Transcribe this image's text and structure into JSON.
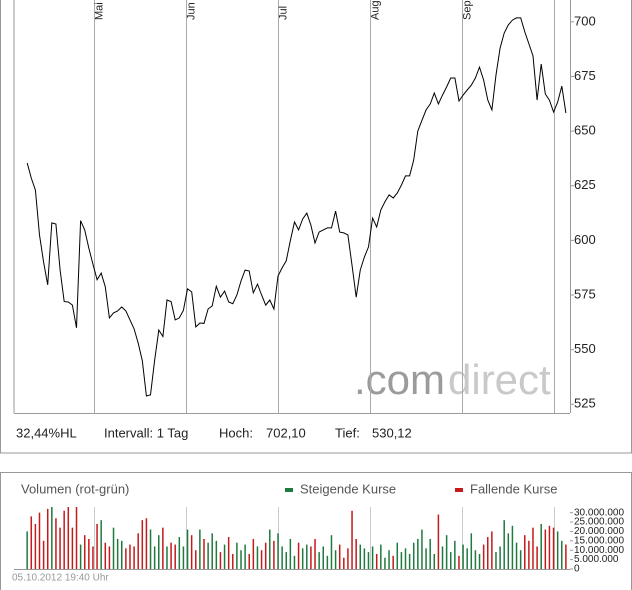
{
  "chart_data": [
    {
      "type": "line",
      "color": "#000000",
      "values": [
        635.4,
        628.5,
        623,
        602.5,
        590,
        579.6,
        608,
        607.5,
        586.4,
        572,
        571.8,
        570.4,
        560,
        609,
        604.8,
        596.5,
        589,
        582,
        585,
        578.7,
        564.5,
        566.8,
        567.7,
        569.5,
        567.7,
        563.6,
        559.5,
        553,
        545,
        528.8,
        529.3,
        545,
        559,
        556,
        572.7,
        572,
        563.6,
        564.5,
        568,
        577.8,
        576.4,
        560.4,
        562.2,
        562,
        568.6,
        570,
        579,
        574,
        576.8,
        571.8,
        571,
        575,
        581.4,
        586.4,
        586,
        576,
        580,
        575,
        570.4,
        572.7,
        568.6,
        583.7,
        587.4,
        590.6,
        600,
        608.4,
        604.8,
        609.8,
        612.5,
        607,
        598.8,
        603.8,
        604.8,
        605.7,
        605.7,
        613.4,
        603.8,
        603.4,
        602.5,
        588.7,
        574,
        586.5,
        592.4,
        597,
        610.2,
        606.1,
        613.9,
        617.6,
        620.8,
        619.4,
        621.7,
        625.3,
        629.5,
        629.5,
        636.8,
        650,
        655,
        659.7,
        662.4,
        667.4,
        662.4,
        666.5,
        670.2,
        674.3,
        674.3,
        663.8,
        666.5,
        668.8,
        671,
        674.3,
        679.3,
        673.4,
        664.2,
        659.7,
        675.7,
        688,
        694.9,
        698.6,
        700.8,
        701.8,
        701.8,
        695.4,
        689.9,
        684.4,
        664.2,
        680.7,
        667,
        664.2,
        658.7,
        663.3,
        670.6,
        658.3
      ],
      "xlim": [
        -3.2,
        132
      ],
      "xticks": [
        {
          "value": 16.3,
          "label": "Mai"
        },
        {
          "value": 38.6,
          "label": "Jun"
        },
        {
          "value": 61,
          "label": "Jul"
        },
        {
          "value": 83.4,
          "label": "Aug"
        },
        {
          "value": 105.7,
          "label": "Sep"
        },
        {
          "value": 128.1,
          "label": null
        }
      ],
      "ylim": [
        521,
        710
      ],
      "yticks": [
        525,
        550,
        575,
        600,
        625,
        650,
        675,
        700
      ],
      "info": {
        "range": "32,44%HL",
        "interval": "Intervall: 1 Tag",
        "high_label": "Hoch:",
        "high": "702,10",
        "low_label": "Tief:",
        "low": "530,12"
      },
      "watermark": {
        "prefix": ".com",
        "suffix": "direct"
      }
    },
    {
      "type": "bar",
      "title": "Volumen (rot-grün)",
      "legend": [
        {
          "name": "Steigende Kurse",
          "color": "#1f7a3f"
        },
        {
          "name": "Fallende Kurse",
          "color": "#c41a1a"
        }
      ],
      "values": [
        20000000,
        28000000,
        24000000,
        30000000,
        15000000,
        32000000,
        33000000,
        27000000,
        22000000,
        31000000,
        33000000,
        22000000,
        33000000,
        13000000,
        18000000,
        16000000,
        12000000,
        24000000,
        26000000,
        14000000,
        12000000,
        22000000,
        16000000,
        15000000,
        11000000,
        13000000,
        12000000,
        19000000,
        26000000,
        27000000,
        21000000,
        12000000,
        18000000,
        22000000,
        12000000,
        14000000,
        13000000,
        17000000,
        12000000,
        21000000,
        18000000,
        10000000,
        21000000,
        16000000,
        14000000,
        19000000,
        15000000,
        9000000,
        13000000,
        17000000,
        8000000,
        14000000,
        10000000,
        13000000,
        8000000,
        16000000,
        12000000,
        10000000,
        14000000,
        21000000,
        15000000,
        19000000,
        12000000,
        9000000,
        16000000,
        7000000,
        14000000,
        11000000,
        13000000,
        12000000,
        16000000,
        9000000,
        12000000,
        7000000,
        18000000,
        10000000,
        13000000,
        6000000,
        11000000,
        31000000,
        16000000,
        13000000,
        11000000,
        9000000,
        12000000,
        8000000,
        13000000,
        6000000,
        10000000,
        7000000,
        14000000,
        9000000,
        11000000,
        8000000,
        14000000,
        16000000,
        21000000,
        11000000,
        16000000,
        8000000,
        29000000,
        12000000,
        18000000,
        9000000,
        15000000,
        7000000,
        13000000,
        11000000,
        19000000,
        10000000,
        8000000,
        13000000,
        17000000,
        20000000,
        9000000,
        12000000,
        26000000,
        19000000,
        23000000,
        14000000,
        10000000,
        18000000,
        15000000,
        22000000,
        12000000,
        24000000,
        21000000,
        23000000,
        22000000,
        20000000,
        15000000,
        13000000
      ],
      "xlim": [
        -3.2,
        132
      ],
      "ylim": [
        0,
        33000000
      ],
      "yticks": [
        {
          "value": 0,
          "label": "0"
        },
        {
          "value": 5000000,
          "label": "5.000.000"
        },
        {
          "value": 10000000,
          "label": "10.000.000"
        },
        {
          "value": 15000000,
          "label": "15.000.000"
        },
        {
          "value": 20000000,
          "label": "20.000.000"
        },
        {
          "value": 25000000,
          "label": "25.000.000"
        },
        {
          "value": 30000000,
          "label": "30.000.000"
        }
      ],
      "timestamp": "05.10.2012 19:40 Uhr"
    }
  ]
}
